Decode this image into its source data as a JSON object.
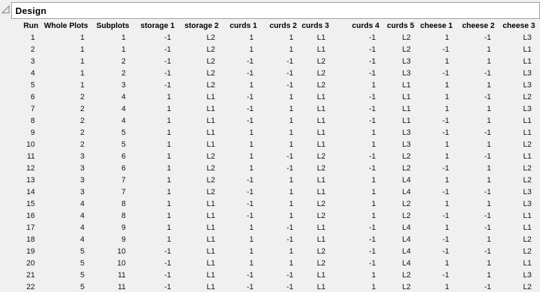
{
  "panel": {
    "title": "Design",
    "disclosure_state": "expanded"
  },
  "colors": {
    "background": "#f0f0f0",
    "titlebar_bg": "#ffffff",
    "titlebar_border": "#9a9a9a",
    "text": "#000000",
    "disclosure_stroke": "#808080",
    "disclosure_fill": "#e9e9e9"
  },
  "table": {
    "columns": [
      "Run",
      "Whole Plots",
      "Subplots",
      "storage 1",
      "storage 2",
      "curds 1",
      "curds 2",
      "curds 3",
      "curds 4",
      "curds 5",
      "cheese 1",
      "cheese 2",
      "cheese 3"
    ],
    "rows": [
      [
        "1",
        "1",
        "1",
        "-1",
        "L2",
        "1",
        "1",
        "L1",
        "-1",
        "L2",
        "1",
        "-1",
        "L3"
      ],
      [
        "2",
        "1",
        "1",
        "-1",
        "L2",
        "1",
        "1",
        "L1",
        "-1",
        "L2",
        "-1",
        "1",
        "L1"
      ],
      [
        "3",
        "1",
        "2",
        "-1",
        "L2",
        "-1",
        "-1",
        "L2",
        "-1",
        "L3",
        "1",
        "1",
        "L1"
      ],
      [
        "4",
        "1",
        "2",
        "-1",
        "L2",
        "-1",
        "-1",
        "L2",
        "-1",
        "L3",
        "-1",
        "-1",
        "L3"
      ],
      [
        "5",
        "1",
        "3",
        "-1",
        "L2",
        "1",
        "-1",
        "L2",
        "1",
        "L1",
        "1",
        "1",
        "L3"
      ],
      [
        "6",
        "2",
        "4",
        "1",
        "L1",
        "-1",
        "1",
        "L1",
        "-1",
        "L1",
        "1",
        "-1",
        "L2"
      ],
      [
        "7",
        "2",
        "4",
        "1",
        "L1",
        "-1",
        "1",
        "L1",
        "-1",
        "L1",
        "1",
        "1",
        "L3"
      ],
      [
        "8",
        "2",
        "4",
        "1",
        "L1",
        "-1",
        "1",
        "L1",
        "-1",
        "L1",
        "-1",
        "1",
        "L1"
      ],
      [
        "9",
        "2",
        "5",
        "1",
        "L1",
        "1",
        "1",
        "L1",
        "1",
        "L3",
        "-1",
        "-1",
        "L1"
      ],
      [
        "10",
        "2",
        "5",
        "1",
        "L1",
        "1",
        "1",
        "L1",
        "1",
        "L3",
        "1",
        "1",
        "L2"
      ],
      [
        "11",
        "3",
        "6",
        "1",
        "L2",
        "1",
        "-1",
        "L2",
        "-1",
        "L2",
        "1",
        "-1",
        "L1"
      ],
      [
        "12",
        "3",
        "6",
        "1",
        "L2",
        "1",
        "-1",
        "L2",
        "-1",
        "L2",
        "-1",
        "1",
        "L2"
      ],
      [
        "13",
        "3",
        "7",
        "1",
        "L2",
        "-1",
        "1",
        "L1",
        "1",
        "L4",
        "1",
        "1",
        "L2"
      ],
      [
        "14",
        "3",
        "7",
        "1",
        "L2",
        "-1",
        "1",
        "L1",
        "1",
        "L4",
        "-1",
        "-1",
        "L3"
      ],
      [
        "15",
        "4",
        "8",
        "1",
        "L1",
        "-1",
        "1",
        "L2",
        "1",
        "L2",
        "1",
        "1",
        "L3"
      ],
      [
        "16",
        "4",
        "8",
        "1",
        "L1",
        "-1",
        "1",
        "L2",
        "1",
        "L2",
        "-1",
        "-1",
        "L1"
      ],
      [
        "17",
        "4",
        "9",
        "1",
        "L1",
        "1",
        "-1",
        "L1",
        "-1",
        "L4",
        "1",
        "-1",
        "L1"
      ],
      [
        "18",
        "4",
        "9",
        "1",
        "L1",
        "1",
        "-1",
        "L1",
        "-1",
        "L4",
        "-1",
        "1",
        "L2"
      ],
      [
        "19",
        "5",
        "10",
        "-1",
        "L1",
        "1",
        "1",
        "L2",
        "-1",
        "L4",
        "-1",
        "-1",
        "L2"
      ],
      [
        "20",
        "5",
        "10",
        "-1",
        "L1",
        "1",
        "1",
        "L2",
        "-1",
        "L4",
        "1",
        "1",
        "L1"
      ],
      [
        "21",
        "5",
        "11",
        "-1",
        "L1",
        "-1",
        "-1",
        "L1",
        "1",
        "L2",
        "-1",
        "1",
        "L3"
      ],
      [
        "22",
        "5",
        "11",
        "-1",
        "L1",
        "-1",
        "-1",
        "L1",
        "1",
        "L2",
        "1",
        "-1",
        "L2"
      ]
    ]
  }
}
